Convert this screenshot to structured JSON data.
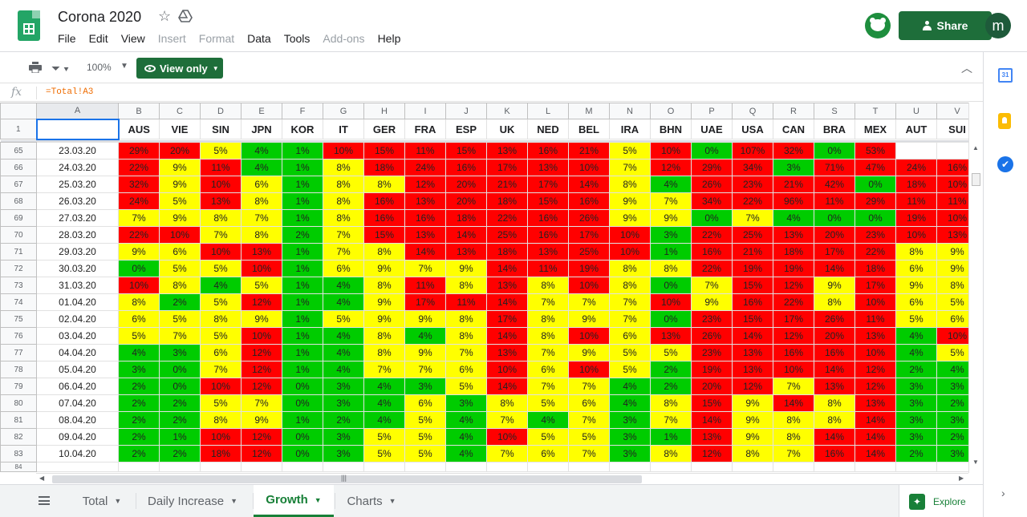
{
  "header": {
    "title": "Corona 2020",
    "share_label": "Share",
    "account_initial": "m",
    "menu": [
      {
        "label": "File",
        "disabled": false
      },
      {
        "label": "Edit",
        "disabled": false
      },
      {
        "label": "View",
        "disabled": false
      },
      {
        "label": "Insert",
        "disabled": true
      },
      {
        "label": "Format",
        "disabled": true
      },
      {
        "label": "Data",
        "disabled": false
      },
      {
        "label": "Tools",
        "disabled": false
      },
      {
        "label": "Add-ons",
        "disabled": true
      },
      {
        "label": "Help",
        "disabled": false
      }
    ]
  },
  "toolbar": {
    "zoom": "100%",
    "view_only_label": "View only"
  },
  "formula_bar": {
    "fx_label": "fx",
    "formula": "=Total!A3"
  },
  "sheet": {
    "column_letters": [
      "A",
      "B",
      "C",
      "D",
      "E",
      "F",
      "G",
      "H",
      "I",
      "J",
      "K",
      "L",
      "M",
      "N",
      "O",
      "P",
      "Q",
      "R",
      "S",
      "T",
      "U",
      "V"
    ],
    "header_row_number": "1",
    "countries": [
      "AUS",
      "VIE",
      "SIN",
      "JPN",
      "KOR",
      "IT",
      "GER",
      "FRA",
      "ESP",
      "UK",
      "NED",
      "BEL",
      "IRA",
      "BHN",
      "UAE",
      "USA",
      "CAN",
      "BRA",
      "MEX",
      "AUT",
      "SUI"
    ],
    "rows": [
      {
        "n": "65",
        "date": "23.03.20",
        "v": [
          "29%",
          "20%",
          "5%",
          "4%",
          "1%",
          "10%",
          "15%",
          "11%",
          "15%",
          "13%",
          "16%",
          "21%",
          "5%",
          "10%",
          "0%",
          "107%",
          "32%",
          "0%",
          "53%",
          "",
          ""
        ]
      },
      {
        "n": "66",
        "date": "24.03.20",
        "v": [
          "22%",
          "9%",
          "11%",
          "4%",
          "1%",
          "8%",
          "18%",
          "24%",
          "16%",
          "17%",
          "13%",
          "10%",
          "7%",
          "12%",
          "29%",
          "34%",
          "3%",
          "71%",
          "47%",
          "24%",
          "16%"
        ]
      },
      {
        "n": "67",
        "date": "25.03.20",
        "v": [
          "32%",
          "9%",
          "10%",
          "6%",
          "1%",
          "8%",
          "8%",
          "12%",
          "20%",
          "21%",
          "17%",
          "14%",
          "8%",
          "4%",
          "26%",
          "23%",
          "21%",
          "42%",
          "0%",
          "18%",
          "10%"
        ]
      },
      {
        "n": "68",
        "date": "26.03.20",
        "v": [
          "24%",
          "5%",
          "13%",
          "8%",
          "1%",
          "8%",
          "16%",
          "13%",
          "20%",
          "18%",
          "15%",
          "16%",
          "9%",
          "7%",
          "34%",
          "22%",
          "96%",
          "11%",
          "29%",
          "11%",
          "11%"
        ]
      },
      {
        "n": "69",
        "date": "27.03.20",
        "v": [
          "7%",
          "9%",
          "8%",
          "7%",
          "1%",
          "8%",
          "16%",
          "16%",
          "18%",
          "22%",
          "16%",
          "26%",
          "9%",
          "9%",
          "0%",
          "7%",
          "4%",
          "0%",
          "0%",
          "19%",
          "10%"
        ]
      },
      {
        "n": "70",
        "date": "28.03.20",
        "v": [
          "22%",
          "10%",
          "7%",
          "8%",
          "2%",
          "7%",
          "15%",
          "13%",
          "14%",
          "25%",
          "16%",
          "17%",
          "10%",
          "3%",
          "22%",
          "25%",
          "13%",
          "20%",
          "23%",
          "10%",
          "13%"
        ]
      },
      {
        "n": "71",
        "date": "29.03.20",
        "v": [
          "9%",
          "6%",
          "10%",
          "13%",
          "1%",
          "7%",
          "8%",
          "14%",
          "13%",
          "18%",
          "13%",
          "25%",
          "10%",
          "1%",
          "16%",
          "21%",
          "18%",
          "17%",
          "22%",
          "8%",
          "9%"
        ]
      },
      {
        "n": "72",
        "date": "30.03.20",
        "v": [
          "0%",
          "5%",
          "5%",
          "10%",
          "1%",
          "6%",
          "9%",
          "7%",
          "9%",
          "14%",
          "11%",
          "19%",
          "8%",
          "8%",
          "22%",
          "19%",
          "19%",
          "14%",
          "18%",
          "6%",
          "9%"
        ]
      },
      {
        "n": "73",
        "date": "31.03.20",
        "v": [
          "10%",
          "8%",
          "4%",
          "5%",
          "1%",
          "4%",
          "8%",
          "11%",
          "8%",
          "13%",
          "8%",
          "10%",
          "8%",
          "0%",
          "7%",
          "15%",
          "12%",
          "9%",
          "17%",
          "9%",
          "8%"
        ]
      },
      {
        "n": "74",
        "date": "01.04.20",
        "v": [
          "8%",
          "2%",
          "5%",
          "12%",
          "1%",
          "4%",
          "9%",
          "17%",
          "11%",
          "14%",
          "7%",
          "7%",
          "7%",
          "10%",
          "9%",
          "16%",
          "22%",
          "8%",
          "10%",
          "6%",
          "5%"
        ]
      },
      {
        "n": "75",
        "date": "02.04.20",
        "v": [
          "6%",
          "5%",
          "8%",
          "9%",
          "1%",
          "5%",
          "9%",
          "9%",
          "8%",
          "17%",
          "8%",
          "9%",
          "7%",
          "0%",
          "23%",
          "15%",
          "17%",
          "26%",
          "11%",
          "5%",
          "6%"
        ]
      },
      {
        "n": "76",
        "date": "03.04.20",
        "v": [
          "5%",
          "7%",
          "5%",
          "10%",
          "1%",
          "4%",
          "8%",
          "4%",
          "8%",
          "14%",
          "8%",
          "10%",
          "6%",
          "13%",
          "26%",
          "14%",
          "12%",
          "20%",
          "13%",
          "4%",
          "10%"
        ]
      },
      {
        "n": "77",
        "date": "04.04.20",
        "v": [
          "4%",
          "3%",
          "6%",
          "12%",
          "1%",
          "4%",
          "8%",
          "9%",
          "7%",
          "13%",
          "7%",
          "9%",
          "5%",
          "5%",
          "23%",
          "13%",
          "16%",
          "16%",
          "10%",
          "4%",
          "5%"
        ]
      },
      {
        "n": "78",
        "date": "05.04.20",
        "v": [
          "3%",
          "0%",
          "7%",
          "12%",
          "1%",
          "4%",
          "7%",
          "7%",
          "6%",
          "10%",
          "6%",
          "10%",
          "5%",
          "2%",
          "19%",
          "13%",
          "10%",
          "14%",
          "12%",
          "2%",
          "4%"
        ]
      },
      {
        "n": "79",
        "date": "06.04.20",
        "v": [
          "2%",
          "0%",
          "10%",
          "12%",
          "0%",
          "3%",
          "4%",
          "3%",
          "5%",
          "14%",
          "7%",
          "7%",
          "4%",
          "2%",
          "20%",
          "12%",
          "7%",
          "13%",
          "12%",
          "3%",
          "3%"
        ]
      },
      {
        "n": "80",
        "date": "07.04.20",
        "v": [
          "2%",
          "2%",
          "5%",
          "7%",
          "0%",
          "3%",
          "4%",
          "6%",
          "3%",
          "8%",
          "5%",
          "6%",
          "4%",
          "8%",
          "15%",
          "9%",
          "14%",
          "8%",
          "13%",
          "3%",
          "2%"
        ]
      },
      {
        "n": "81",
        "date": "08.04.20",
        "v": [
          "2%",
          "2%",
          "8%",
          "9%",
          "1%",
          "2%",
          "4%",
          "5%",
          "4%",
          "7%",
          "4%",
          "7%",
          "3%",
          "7%",
          "14%",
          "9%",
          "8%",
          "8%",
          "14%",
          "3%",
          "3%"
        ]
      },
      {
        "n": "82",
        "date": "09.04.20",
        "v": [
          "2%",
          "1%",
          "10%",
          "12%",
          "0%",
          "3%",
          "5%",
          "5%",
          "4%",
          "10%",
          "5%",
          "5%",
          "3%",
          "1%",
          "13%",
          "9%",
          "8%",
          "14%",
          "14%",
          "3%",
          "2%"
        ]
      },
      {
        "n": "83",
        "date": "10.04.20",
        "v": [
          "2%",
          "2%",
          "18%",
          "12%",
          "0%",
          "3%",
          "5%",
          "5%",
          "4%",
          "7%",
          "6%",
          "7%",
          "3%",
          "8%",
          "12%",
          "8%",
          "7%",
          "16%",
          "14%",
          "2%",
          "3%"
        ]
      }
    ],
    "next_row_number": "84",
    "colors": {
      "low": "#00cc00",
      "mid": "#ffff00",
      "high": "#ff0000"
    }
  },
  "tabs": [
    {
      "label": "Total",
      "active": false
    },
    {
      "label": "Daily Increase",
      "active": false
    },
    {
      "label": "Growth",
      "active": true
    },
    {
      "label": "Charts",
      "active": false
    }
  ],
  "explore_label": "Explore",
  "side_panel": {
    "calendar_day": "31"
  }
}
